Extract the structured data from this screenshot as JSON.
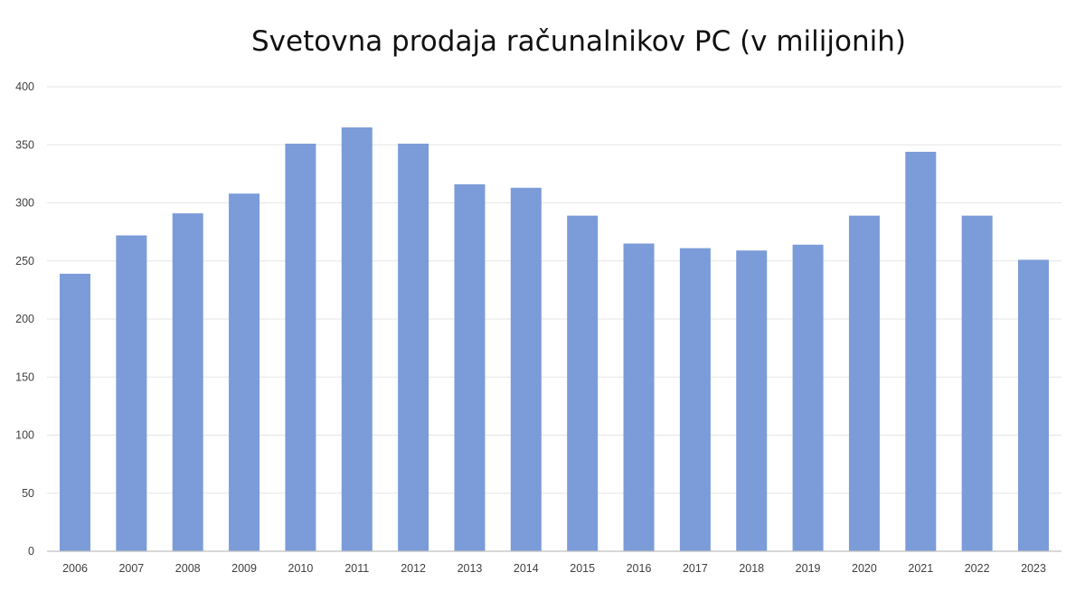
{
  "chart_data": {
    "type": "bar",
    "title": "Svetovna prodaja računalnikov PC (v milijonih)",
    "xlabel": "",
    "ylabel": "",
    "categories": [
      "2006",
      "2007",
      "2008",
      "2009",
      "2010",
      "2011",
      "2012",
      "2013",
      "2014",
      "2015",
      "2016",
      "2017",
      "2018",
      "2019",
      "2020",
      "2021",
      "2022",
      "2023"
    ],
    "values": [
      239,
      272,
      291,
      308,
      351,
      365,
      351,
      316,
      313,
      289,
      265,
      261,
      259,
      264,
      289,
      344,
      289,
      251
    ],
    "ylim": [
      0,
      400
    ],
    "yticks": [
      "0",
      "50",
      "100",
      "150",
      "200",
      "250",
      "300",
      "350",
      "400"
    ],
    "grid": true,
    "legend": "none",
    "bar_color": "#7b9cd9"
  }
}
